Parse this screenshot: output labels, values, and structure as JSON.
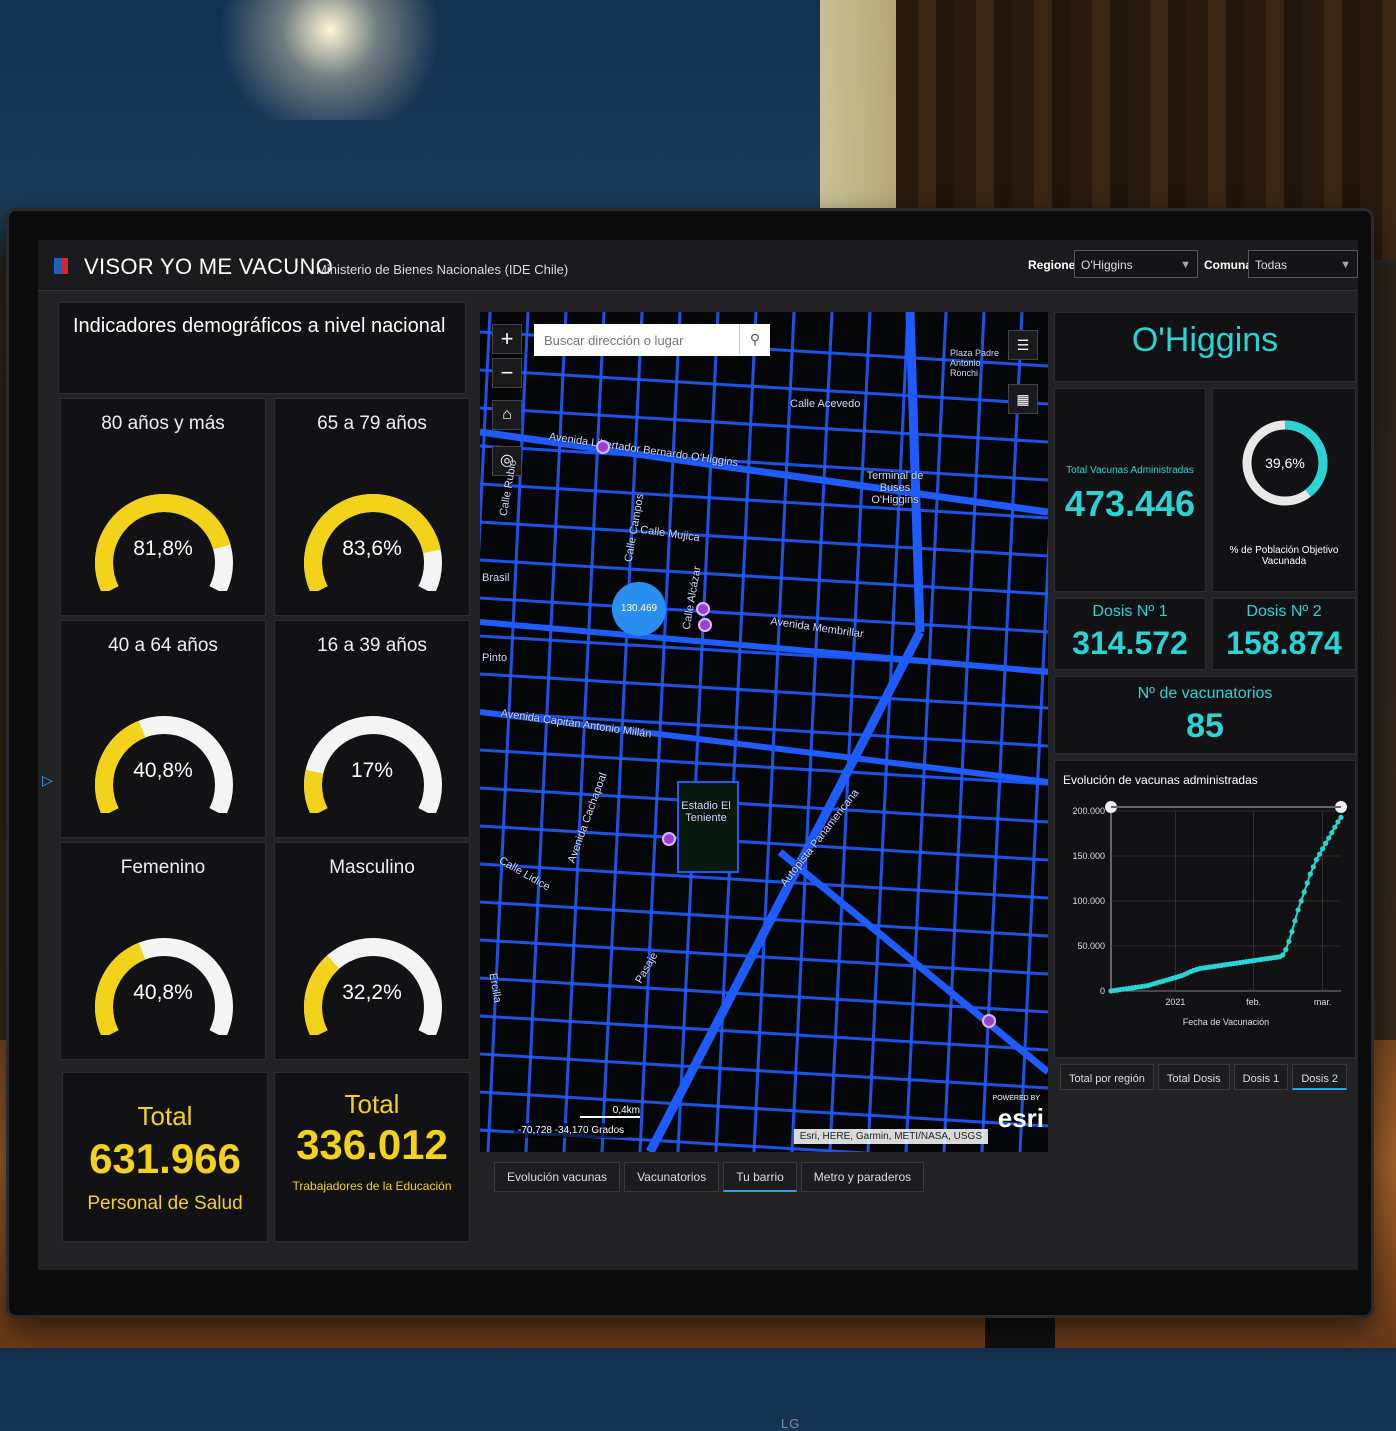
{
  "header": {
    "title": "VISOR YO ME VACUNO",
    "subtitle": "Ministerio de Bienes Nacionales (IDE Chile)",
    "regiones_label": "Regiones",
    "regiones_value": "O'Higgins",
    "comunas_label": "Comunas",
    "comunas_value": "Todas"
  },
  "left": {
    "title": "Indicadores demográficos a nivel nacional",
    "gauges": [
      {
        "label": "80 años y más",
        "value": 81.8,
        "text": "81,8%"
      },
      {
        "label": "65 a 79 años",
        "value": 83.6,
        "text": "83,6%"
      },
      {
        "label": "40 a 64 años",
        "value": 40.8,
        "text": "40,8%"
      },
      {
        "label": "16 a 39 años",
        "value": 17,
        "text": "17%"
      },
      {
        "label": "Femenino",
        "value": 40.8,
        "text": "40,8%"
      },
      {
        "label": "Masculino",
        "value": 32.2,
        "text": "32,2%"
      }
    ],
    "totals": [
      {
        "label": "Total",
        "value": "631.966",
        "sub": "Personal de Salud"
      },
      {
        "label": "Total",
        "value": "336.012",
        "sub": "Trabajadores de la Educación"
      }
    ],
    "colors": {
      "gauge_fill": "#f2d21a",
      "gauge_track": "#f4f4f4"
    }
  },
  "map": {
    "search_placeholder": "Buscar dirección o lugar",
    "cluster_count": "130.469",
    "streets": {
      "s1": "Calle Acevedo",
      "s2": "Avenida Libertador Bernardo O'Higgins",
      "s3": "Terminal de Buses O'Higgins",
      "s4": "Calle Mujica",
      "s5": "Avenida Membrillar",
      "s6": "Avenida Capitán Antonio Millán",
      "s7": "Estadio El Teniente",
      "s8": "Autopista Panamericana",
      "s9": "Calle Lidice",
      "s10": "Plaza Padre Antonio Ronchi",
      "s11": "Calle Rubio",
      "s12": "Calle Campos",
      "s13": "Calle Alcázar",
      "s14": "Brasil",
      "s15": "Pinto",
      "s16": "Avenida Cachapoal",
      "s17": "Pasaje",
      "s18": "Ercilla"
    },
    "scale": "0,4km",
    "coords": "-70,728 -34,170 Grados",
    "attribution": "Esri, HERE, Garmin, METI/NASA, USGS",
    "esri_powered": "POWERED BY",
    "esri": "esri",
    "tabs": [
      "Evolución vacunas",
      "Vacunatorios",
      "Tu barrio",
      "Metro y paraderos"
    ],
    "active_tab": "Tu barrio"
  },
  "right": {
    "region": "O'Higgins",
    "total_label": "Total Vacunas Administradas",
    "total_value": "473.446",
    "pct_value": 39.6,
    "pct_text": "39,6%",
    "pct_label": "% de Población Objetivo Vacunada",
    "dose1_label": "Dosis Nº 1",
    "dose1_value": "314.572",
    "dose2_label": "Dosis Nº 2",
    "dose2_value": "158.874",
    "vac_label": "Nº de vacunatorios",
    "vac_value": "85",
    "chart_tabs": [
      "Total por región",
      "Total Dosis",
      "Dosis 1",
      "Dosis 2"
    ],
    "active_chart_tab": "Dosis 2",
    "accent": "#2ad4d4"
  },
  "chart_data": {
    "type": "line",
    "title": "Evolución de vacunas administradas",
    "xlabel": "Fecha de Vacunación",
    "ylabel": "",
    "x_ticks": [
      "2021",
      "feb.",
      "mar."
    ],
    "y_ticks": [
      "0",
      "50.000",
      "100.000",
      "150.000",
      "200.000"
    ],
    "ylim": [
      0,
      200000
    ],
    "x": [
      0,
      1,
      2,
      3,
      4,
      5,
      6,
      7,
      8,
      9,
      10,
      11,
      12,
      13,
      14,
      15,
      16,
      17,
      18,
      19,
      20,
      21,
      22,
      23,
      24,
      25,
      26,
      27,
      28,
      29,
      30,
      31,
      32,
      33,
      34,
      35,
      36,
      37,
      38,
      39,
      40,
      41,
      42,
      43,
      44,
      45,
      46,
      47,
      48,
      49,
      50,
      51,
      52,
      53,
      54,
      55,
      56,
      57,
      58,
      59,
      60,
      61,
      62,
      63,
      64,
      65,
      66,
      67,
      68,
      69,
      70,
      71,
      72,
      73,
      74,
      75
    ],
    "values": [
      0,
      500,
      1000,
      1500,
      2000,
      2500,
      3000,
      3500,
      4000,
      4500,
      5000,
      5500,
      6000,
      7000,
      8000,
      9000,
      10000,
      11000,
      12000,
      13000,
      14000,
      15000,
      16000,
      17000,
      18500,
      20000,
      21500,
      23000,
      24000,
      25000,
      25500,
      26000,
      26500,
      27000,
      27500,
      28000,
      28500,
      29000,
      29500,
      30000,
      30500,
      31000,
      31500,
      32000,
      32500,
      33000,
      33500,
      34000,
      34500,
      35000,
      35500,
      36000,
      36500,
      37000,
      37500,
      38000,
      40000,
      46000,
      55000,
      66000,
      78000,
      90000,
      100000,
      110000,
      120000,
      130000,
      138000,
      146000,
      152000,
      158000,
      164000,
      170000,
      176000,
      182000,
      188000,
      193000
    ]
  }
}
